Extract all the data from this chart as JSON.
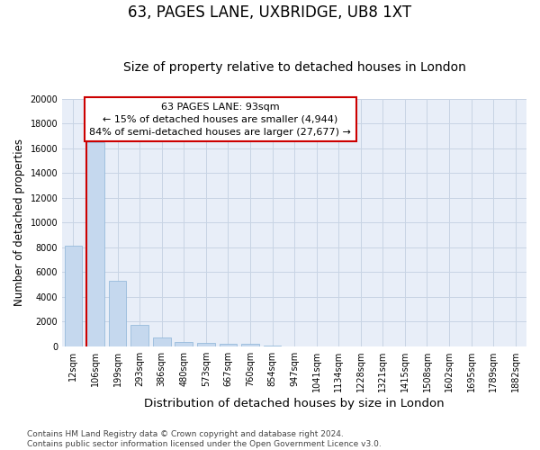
{
  "title": "63, PAGES LANE, UXBRIDGE, UB8 1XT",
  "subtitle": "Size of property relative to detached houses in London",
  "xlabel": "Distribution of detached houses by size in London",
  "ylabel": "Number of detached properties",
  "categories": [
    "12sqm",
    "106sqm",
    "199sqm",
    "293sqm",
    "386sqm",
    "480sqm",
    "573sqm",
    "667sqm",
    "760sqm",
    "854sqm",
    "947sqm",
    "1041sqm",
    "1134sqm",
    "1228sqm",
    "1321sqm",
    "1415sqm",
    "1508sqm",
    "1602sqm",
    "1695sqm",
    "1789sqm",
    "1882sqm"
  ],
  "bar_heights": [
    8100,
    16500,
    5300,
    1750,
    700,
    350,
    270,
    210,
    160,
    80,
    0,
    0,
    0,
    0,
    0,
    0,
    0,
    0,
    0,
    0,
    0
  ],
  "bar_color": "#c5d8ee",
  "bar_edge_color": "#8ab4d8",
  "grid_color": "#c8d4e4",
  "background_color": "#e8eef8",
  "vline_x_index": 1,
  "vline_color": "#cc0000",
  "annotation_text": "63 PAGES LANE: 93sqm\n← 15% of detached houses are smaller (4,944)\n84% of semi-detached houses are larger (27,677) →",
  "annotation_box_color": "#ffffff",
  "annotation_box_edge": "#cc0000",
  "ylim": [
    0,
    20000
  ],
  "yticks": [
    0,
    2000,
    4000,
    6000,
    8000,
    10000,
    12000,
    14000,
    16000,
    18000,
    20000
  ],
  "footnote": "Contains HM Land Registry data © Crown copyright and database right 2024.\nContains public sector information licensed under the Open Government Licence v3.0.",
  "title_fontsize": 12,
  "subtitle_fontsize": 10,
  "xlabel_fontsize": 9.5,
  "ylabel_fontsize": 8.5,
  "tick_fontsize": 7,
  "footnote_fontsize": 6.5,
  "annotation_fontsize": 8
}
